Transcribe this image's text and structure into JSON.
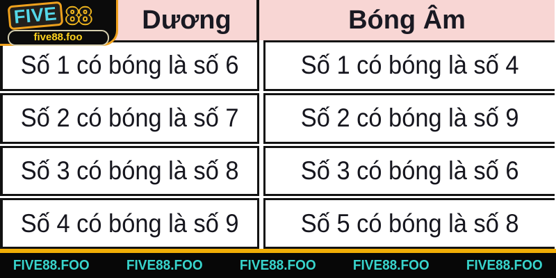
{
  "logo": {
    "brand_part1": "FIVE",
    "brand_part2": "88",
    "domain": "five88.foo"
  },
  "table": {
    "columns": [
      {
        "header": "Dương",
        "rows": [
          "Số 1 có bóng là số 6",
          "Số 2 có bóng là số 7",
          "Số 3 có bóng là số 8",
          "Số 4 có bóng là số 9"
        ]
      },
      {
        "header": "Bóng Âm",
        "rows": [
          "Số 1 có bóng là số 4",
          "Số 2 có bóng là số 9",
          "Số 3 có bóng là số 6",
          "Số 5 có bóng là số 8"
        ]
      }
    ]
  },
  "footer": {
    "watermarks": [
      "FIVE88.FOO",
      "FIVE88.FOO",
      "FIVE88.FOO",
      "FIVE88.FOO",
      "FIVE88.FOO"
    ]
  },
  "colors": {
    "header_pink": "#f8d6d4",
    "accent_yellow": "#f1ae06",
    "logo_orange_border": "#efa11d",
    "logo_cyan": "#54d7e8",
    "pill_yellow_text": "#ffd21e",
    "footer_cyan": "#38d4cc",
    "table_border_black": "#121212"
  }
}
